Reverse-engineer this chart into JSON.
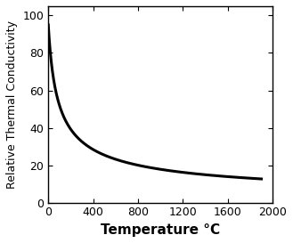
{
  "title": "",
  "xlabel": "Temperature °C",
  "ylabel": "Relative Thermal Conductivity",
  "xlim": [
    0,
    2000
  ],
  "ylim": [
    0,
    105
  ],
  "xticks": [
    0,
    400,
    800,
    1200,
    1600,
    2000
  ],
  "yticks": [
    0,
    20,
    40,
    60,
    80,
    100
  ],
  "curve_color": "#000000",
  "curve_linewidth": 2.2,
  "background_color": "#ffffff",
  "x_start": 0,
  "x_end": 1900,
  "y_start": 95,
  "y_end": 20,
  "decay_coeff": 0.00065,
  "ylabel_fontsize": 9,
  "xlabel_fontsize": 11,
  "tick_fontsize": 9
}
